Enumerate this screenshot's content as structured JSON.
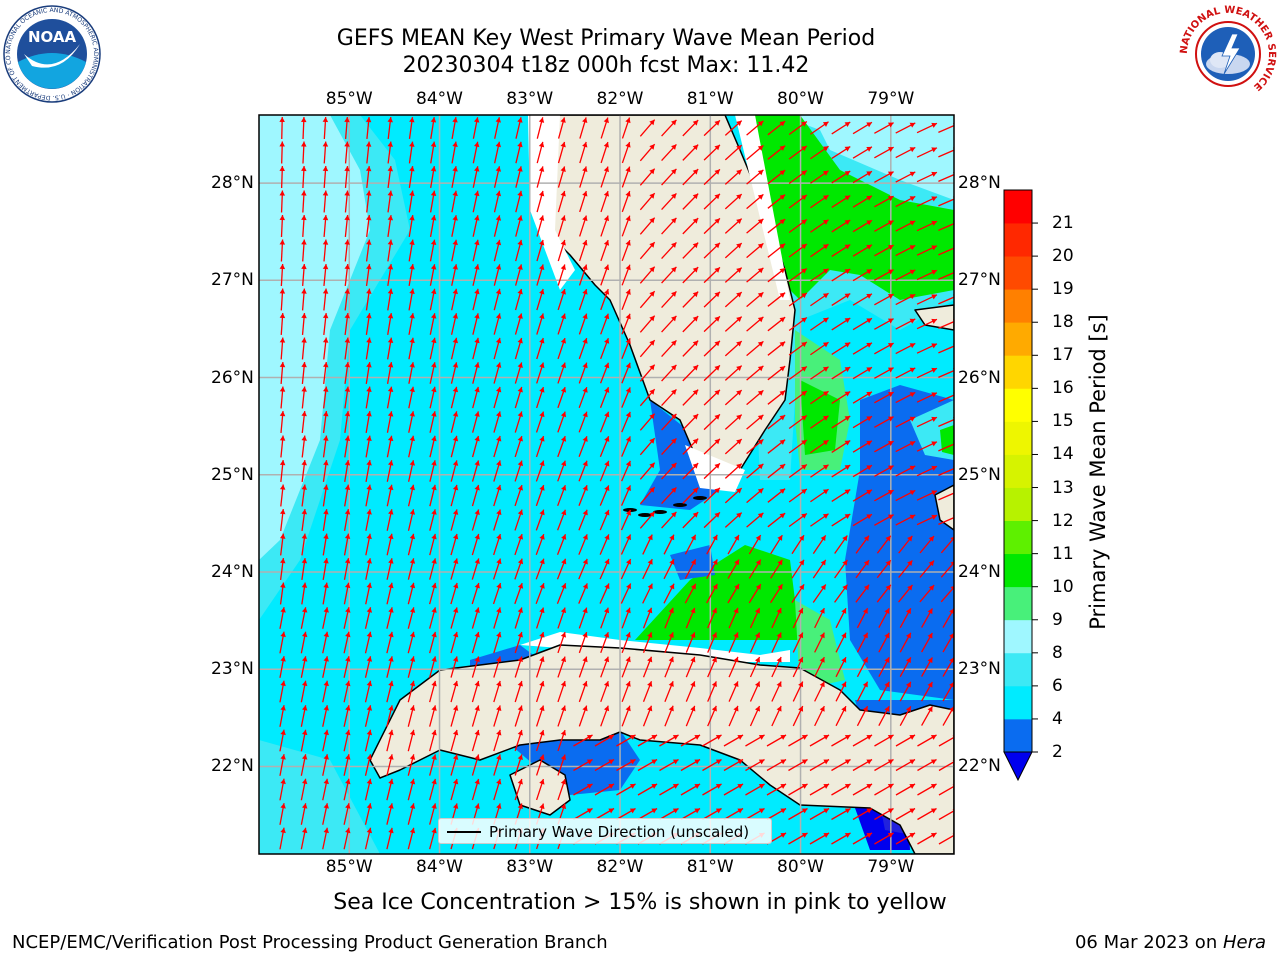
{
  "title": {
    "line1": "GEFS MEAN Key West Primary Wave Mean Period",
    "line2": "20230304 t18z 000h fcst   Max: 11.42"
  },
  "map": {
    "lon_labels": [
      "85°W",
      "84°W",
      "83°W",
      "82°W",
      "81°W",
      "80°W",
      "79°W"
    ],
    "lat_labels": [
      "28°N",
      "27°N",
      "26°N",
      "25°N",
      "24°N",
      "23°N",
      "22°N"
    ],
    "lon_range": [
      -86,
      -78.3
    ],
    "lat_range": [
      21.1,
      28.7
    ],
    "legend_label": "Primary Wave Direction (unscaled)",
    "arrow_color": "#ff0000",
    "land_color": "#efecdc",
    "grid_color": "#b0b0b0"
  },
  "colorbar": {
    "label": "Primary Wave Mean Period [s]",
    "levels": [
      "2",
      "4",
      "6",
      "8",
      "9",
      "10",
      "11",
      "12",
      "13",
      "14",
      "15",
      "16",
      "17",
      "18",
      "19",
      "20",
      "21"
    ],
    "colors": [
      "#0a6cf0",
      "#00ebff",
      "#3ce9f5",
      "#9ff7ff",
      "#48f07a",
      "#00e800",
      "#5ef000",
      "#b7f200",
      "#d6f300",
      "#eef600",
      "#ffff00",
      "#ffd600",
      "#ffaa00",
      "#ff8000",
      "#ff4a00",
      "#ff2800",
      "#ff0000"
    ],
    "below_color": "#0000ee"
  },
  "note": "Sea Ice Concentration > 15% is shown in pink to yellow",
  "footer": {
    "left": "NCEP/EMC/Verification Post Processing Product Generation Branch",
    "date": "06 Mar 2023 on ",
    "machine": "Hera"
  },
  "logos": {
    "noaa_text": "NOAA",
    "noaa_ring": "NATIONAL OCEANIC AND ATMOSPHERIC ADMINISTRATION · U.S. DEPARTMENT OF COMMERCE",
    "nws_ring": "NATIONAL WEATHER SERVICE"
  }
}
